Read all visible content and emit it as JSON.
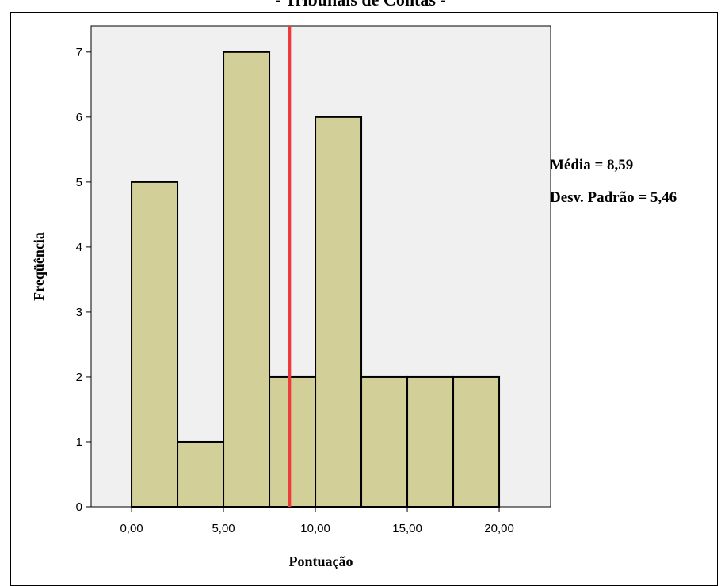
{
  "chart_data": {
    "type": "bar",
    "title": "- Tribunais de Contas -",
    "xlabel": "Pontuação",
    "ylabel": "Freqüência",
    "bin_edges": [
      0,
      2.5,
      5,
      7.5,
      10,
      12.5,
      15,
      17.5,
      20
    ],
    "values": [
      5,
      1,
      7,
      2,
      6,
      2,
      2,
      2
    ],
    "xlim": [
      -2.2,
      22.8
    ],
    "ylim": [
      0,
      7.4
    ],
    "x_ticks": [
      0,
      5,
      10,
      15,
      20
    ],
    "x_tick_labels": [
      "0,00",
      "5,00",
      "10,00",
      "15,00",
      "20,00"
    ],
    "y_ticks": [
      0,
      1,
      2,
      3,
      4,
      5,
      6,
      7
    ],
    "y_tick_labels": [
      "0",
      "1",
      "2",
      "3",
      "4",
      "5",
      "6",
      "7"
    ],
    "mean": 8.59,
    "mean_label": "Média = 8,59",
    "std_label": "Desv. Padrão = 5,46",
    "grid": false,
    "colors": {
      "plot_background": "#f0f0f0",
      "bar_fill": "#d3cf98",
      "bar_stroke": "#000000",
      "mean_line": "#ee3a3a"
    }
  }
}
